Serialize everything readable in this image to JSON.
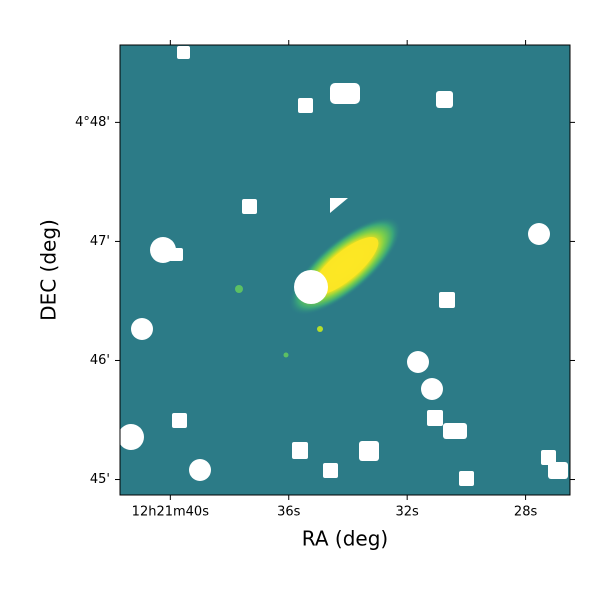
{
  "chart_data": {
    "type": "image",
    "xlabel": "RA (deg)",
    "ylabel": "DEC (deg)",
    "xlim": [
      41.7,
      26.5
    ],
    "xticks": [
      {
        "value": 40,
        "label": "12h21m40s"
      },
      {
        "value": 36,
        "label": "36s"
      },
      {
        "value": 32,
        "label": "32s"
      },
      {
        "value": 28,
        "label": "28s"
      }
    ],
    "ylim": [
      44.87,
      48.65
    ],
    "yticks": [
      {
        "value": 48,
        "label": "4°48'"
      },
      {
        "value": 47,
        "label": "47'"
      },
      {
        "value": 46,
        "label": "46'"
      },
      {
        "value": 45,
        "label": "45'"
      }
    ]
  }
}
